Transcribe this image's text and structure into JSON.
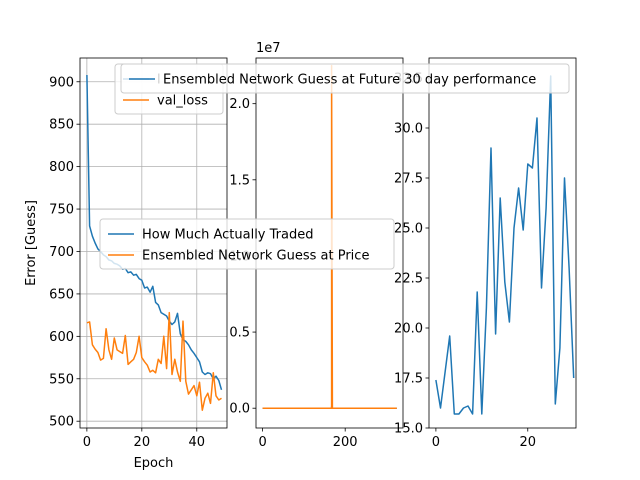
{
  "chart_data": [
    {
      "type": "line",
      "xlabel": "Epoch",
      "ylabel": "Error [Guess]",
      "xlim": [
        -2.5,
        51
      ],
      "ylim": [
        492,
        928
      ],
      "grid": true,
      "xticks": [
        "0",
        "20",
        "40"
      ],
      "xtick_values": [
        0,
        20,
        40
      ],
      "yticks": [
        "500",
        "550",
        "600",
        "650",
        "700",
        "750",
        "800",
        "850",
        "900"
      ],
      "ytick_values": [
        500,
        550,
        600,
        650,
        700,
        750,
        800,
        850,
        900
      ],
      "legend": {
        "placement": "upper-right",
        "entries": [
          "loss",
          "val_loss"
        ],
        "visible_text": [
          "l",
          "val_loss"
        ]
      },
      "series": [
        {
          "name": "loss",
          "color": "#1f77b4",
          "values": [
            908,
            730,
            718,
            710,
            703,
            700,
            696,
            694,
            690,
            689,
            686,
            685,
            683,
            679,
            680,
            675,
            676,
            672,
            673,
            668,
            666,
            657,
            658,
            652,
            659,
            640,
            637,
            628,
            626,
            624,
            618,
            614,
            617,
            627,
            603,
            596,
            594,
            590,
            584,
            580,
            575,
            570,
            558,
            555,
            557,
            556,
            550,
            553,
            548,
            537
          ]
        },
        {
          "name": "val_loss",
          "color": "#ff7f0e",
          "values": [
            616,
            617,
            590,
            585,
            581,
            572,
            574,
            609,
            584,
            573,
            598,
            584,
            582,
            580,
            601,
            567,
            570,
            573,
            581,
            600,
            575,
            570,
            566,
            558,
            560,
            557,
            573,
            568,
            600,
            562,
            628,
            555,
            573,
            558,
            547,
            618,
            547,
            532,
            537,
            542,
            530,
            546,
            513,
            527,
            533,
            521,
            557,
            530,
            525,
            527
          ]
        }
      ]
    },
    {
      "type": "line",
      "offset_text": "1e7",
      "xlim": [
        -16,
        340
      ],
      "ylim": [
        -0.13,
        2.3
      ],
      "xticks": [
        "0",
        "200"
      ],
      "xtick_values": [
        0,
        200
      ],
      "yticks": [
        "0.0",
        "0.5",
        "1.0",
        "1.5",
        "2.0"
      ],
      "ytick_values": [
        0.0,
        0.5,
        1.0,
        1.5,
        2.0
      ],
      "legend": {
        "placement": "center",
        "entries": [
          "How Much Actually Traded",
          "Ensembled Network Guess at Price"
        ]
      },
      "series": [
        {
          "name": "How Much Actually Traded",
          "color": "#1f77b4",
          "x": [
            0,
            167,
            167,
            167,
            325
          ],
          "y": [
            0,
            0,
            0.01,
            0,
            0
          ]
        },
        {
          "name": "Ensembled Network Guess at Price",
          "color": "#ff7f0e",
          "x": [
            0,
            165,
            167,
            167,
            169,
            325
          ],
          "y": [
            0,
            0,
            0,
            2.25,
            0,
            0
          ]
        }
      ]
    },
    {
      "type": "line",
      "xlim": [
        -1.5,
        30.5
      ],
      "ylim": [
        15,
        33.5
      ],
      "xticks": [
        "0",
        "20"
      ],
      "xtick_values": [
        0,
        20
      ],
      "yticks": [
        "15.0",
        "17.5",
        "20.0",
        "22.5",
        "25.0",
        "27.5",
        "30.0",
        "32.5"
      ],
      "ytick_values": [
        15.0,
        17.5,
        20.0,
        22.5,
        25.0,
        27.5,
        30.0,
        32.5
      ],
      "legend": {
        "placement": "upper-center",
        "entries": [
          "Ensembled Network Guess at Future 30 day performance"
        ]
      },
      "series": [
        {
          "name": "Ensembled Network Guess at Future 30 day performance",
          "color": "#1f77b4",
          "x": [
            0,
            1,
            2,
            3,
            4,
            5,
            6,
            7,
            8,
            9,
            10,
            11,
            12,
            13,
            14,
            15,
            16,
            17,
            18,
            19,
            20,
            21,
            22,
            23,
            24,
            25,
            26,
            27,
            28,
            29,
            30
          ],
          "y": [
            17.4,
            16.0,
            17.8,
            19.6,
            15.7,
            15.7,
            16.0,
            16.1,
            15.7,
            21.8,
            15.7,
            21.0,
            29.0,
            19.7,
            26.5,
            22.3,
            20.3,
            25.0,
            27.0,
            24.9,
            28.2,
            28.0,
            30.5,
            22.0,
            26.0,
            32.6,
            16.2,
            19.0,
            27.5,
            23.0,
            17.5
          ]
        }
      ]
    }
  ]
}
